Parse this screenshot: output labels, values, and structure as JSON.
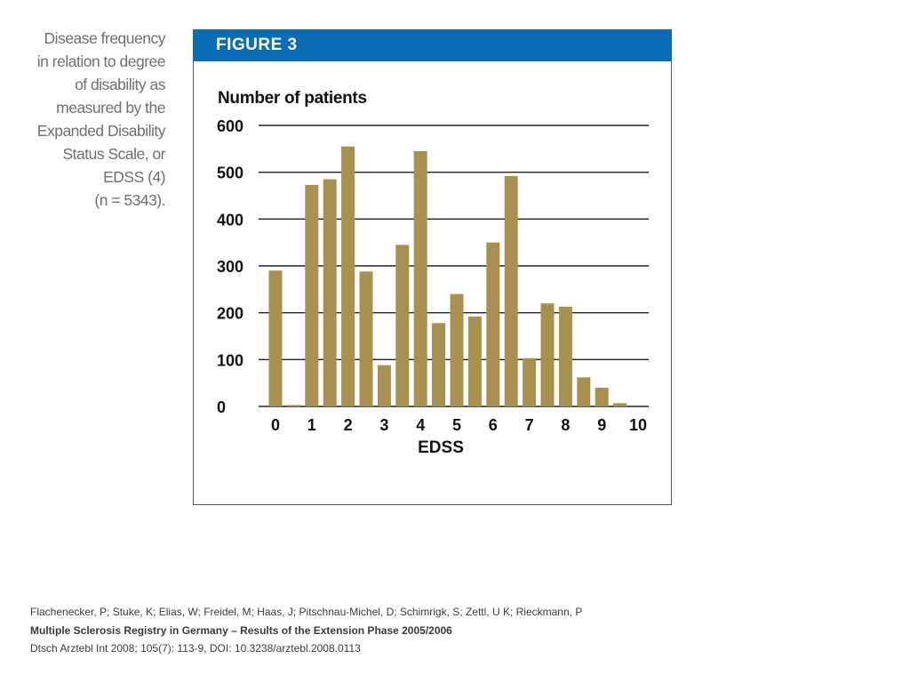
{
  "caption": {
    "lines": [
      "Disease frequency",
      "in relation to degree",
      "of disability as",
      "measured by the",
      "Expanded Disability",
      "Status Scale, or",
      "EDSS (4)",
      "(n = 5343)."
    ]
  },
  "figure": {
    "label": "FIGURE 3"
  },
  "chart_data": {
    "type": "bar",
    "ylabel": "Number of patients",
    "xlabel": "EDSS",
    "ylim": [
      0,
      600
    ],
    "y_ticks": [
      0,
      100,
      200,
      300,
      400,
      500,
      600
    ],
    "x_ticks": [
      "0",
      "1",
      "2",
      "3",
      "4",
      "5",
      "6",
      "7",
      "8",
      "9",
      "10"
    ],
    "grid": "horizontal",
    "bar_color": "#a8904f",
    "categories": [
      "0",
      "0.5",
      "1",
      "1.5",
      "2",
      "2.5",
      "3",
      "3.5",
      "4",
      "4.5",
      "5",
      "5.5",
      "6",
      "6.5",
      "7",
      "7.5",
      "8",
      "8.5",
      "9",
      "9.5",
      "10"
    ],
    "values": [
      290,
      3,
      473,
      485,
      555,
      288,
      88,
      345,
      545,
      178,
      240,
      192,
      350,
      492,
      103,
      220,
      213,
      62,
      40,
      7,
      0
    ]
  },
  "citation": {
    "authors": "Flachenecker, P; Stuke, K; Elias, W; Freidel, M; Haas, J; Pitschnau-Michel, D; Schimrigk, S; Zettl, U K; Rieckmann, P",
    "title": "Multiple Sclerosis Registry in Germany – Results of the Extension Phase 2005/2006",
    "source": "Dtsch Arztebl Int 2008; 105(7): 113-9, DOI: 10.3238/arztebl.2008.0113"
  }
}
